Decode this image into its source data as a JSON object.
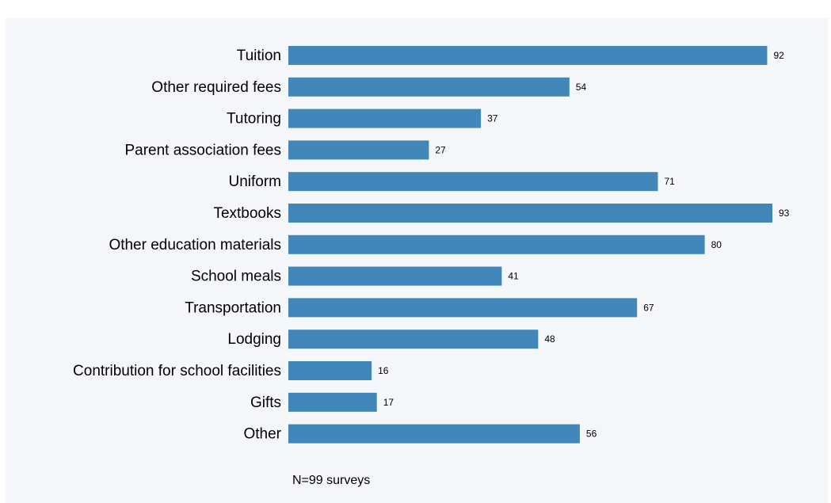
{
  "title": "",
  "note": "N=99 surveys",
  "colors": {
    "bar": "#4187b9",
    "background": "#f5f6fa"
  },
  "chart_data": {
    "type": "bar",
    "orientation": "horizontal",
    "categories": [
      "Tuition",
      "Other required fees",
      "Tutoring",
      "Parent association fees",
      "Uniform",
      "Textbooks",
      "Other education materials",
      "School meals",
      "Transportation",
      "Lodging",
      "Contribution for school facilities",
      "Gifts",
      "Other"
    ],
    "values": [
      92,
      54,
      37,
      27,
      71,
      93,
      80,
      41,
      67,
      48,
      16,
      17,
      56
    ],
    "data_labels": true,
    "grid": false,
    "xlim": [
      0,
      100
    ],
    "xlabel": "",
    "ylabel": ""
  }
}
